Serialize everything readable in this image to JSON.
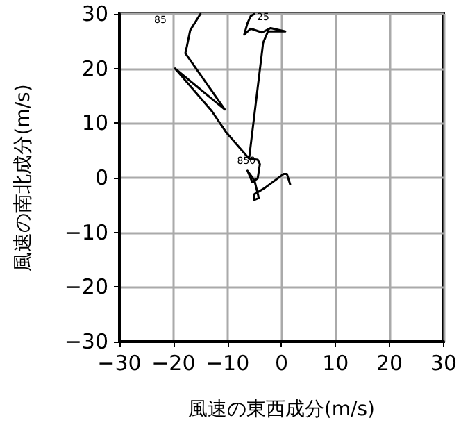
{
  "chart_data": {
    "type": "line",
    "xlabel": "風速の東西成分(m/s)",
    "ylabel": "風速の南北成分(m/s)",
    "xlim": [
      -30,
      30
    ],
    "ylim": [
      -30,
      30
    ],
    "xticks": [
      -30,
      -20,
      -10,
      0,
      10,
      20,
      30
    ],
    "yticks": [
      -30,
      -20,
      -10,
      0,
      10,
      20,
      30
    ],
    "grid": true,
    "marker": "none",
    "line_style": "solid",
    "series": [
      {
        "color": "#000000",
        "x": [
          -15,
          -16.9,
          -17.5,
          -17.8,
          -10.5,
          -19.7,
          -12.9,
          -10.3,
          -6,
          -3.4,
          -2.5,
          0.7,
          -2,
          -3.6,
          -5.7,
          -6.9,
          -6.3,
          -5.7,
          -5,
          null,
          -6,
          -4.4,
          -4,
          -4.4,
          -5.4,
          -6.3,
          -5,
          -4.7,
          -4.2,
          -5.1,
          -5,
          -3,
          0.4,
          1,
          1.6
        ],
        "values": [
          30,
          27,
          24.1,
          22.8,
          12.5,
          20,
          12.2,
          8.4,
          3.5,
          24.7,
          26.8,
          26.8,
          27.4,
          26.6,
          27.3,
          26.2,
          28.3,
          29.6,
          30,
          null,
          3.5,
          3.3,
          2.5,
          -0.1,
          -0.8,
          1.3,
          -0.5,
          -1.7,
          -3.7,
          -4.1,
          -3,
          -1.8,
          0.7,
          0.7,
          -1.2
        ]
      }
    ],
    "annotations": [
      "85",
      "25",
      {
        "text": "850",
        "x": -6.5,
        "y": 3
      }
    ]
  }
}
